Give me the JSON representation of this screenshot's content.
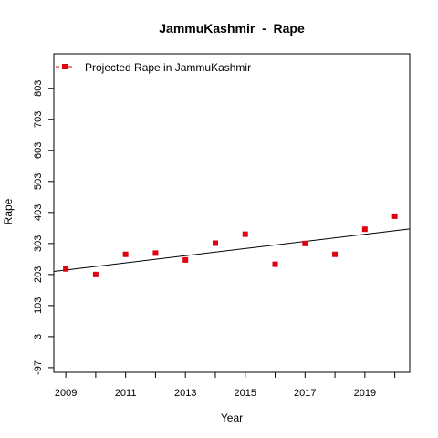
{
  "chart_data": {
    "type": "scatter",
    "title": "JammuKashmir  -  Rape",
    "xlabel": "Year",
    "ylabel": "Rape",
    "x_ticks": [
      "2009",
      "2011",
      "2013",
      "2015",
      "2017",
      "2019"
    ],
    "x_minor_ticks": [
      2010,
      2012,
      2014,
      2016,
      2018,
      2020
    ],
    "y_ticks": [
      "-97",
      "3",
      "103",
      "203",
      "303",
      "403",
      "503",
      "603",
      "703",
      "803"
    ],
    "xlim": [
      2008.6,
      2020.5
    ],
    "ylim": [
      -112,
      914
    ],
    "grid": false,
    "legend_position": "top-left",
    "series": [
      {
        "name": "Projected Rape in JammuKashmir",
        "color": "#e0000f",
        "marker": "square",
        "x": [
          2009,
          2010,
          2011,
          2012,
          2013,
          2014,
          2015,
          2016,
          2017,
          2018,
          2019,
          2020
        ],
        "y": [
          221,
          203,
          268,
          272,
          250,
          304,
          333,
          236,
          303,
          268,
          349,
          391
        ]
      }
    ],
    "trendline": {
      "color": "#000000",
      "x": [
        2008.6,
        2020.5
      ],
      "y": [
        213,
        350
      ]
    }
  }
}
